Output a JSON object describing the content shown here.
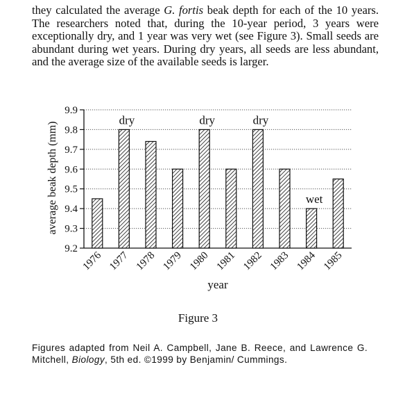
{
  "passage": {
    "line1_a": "they calculated the average ",
    "line1_species": "G. fortis",
    "line1_b": " beak depth for each of",
    "rest": "the 10 years. The researchers noted that, during the 10-year period, 3 years were exceptionally dry, and 1 year was very wet (see Figure 3). Small seeds are abundant during wet years. During dry years, all seeds are less abundant, and the average size of the available seeds is larger."
  },
  "figure": {
    "caption": "Figure 3"
  },
  "source": {
    "part1": "Figures adapted from Neil A. Campbell, Jane B. Reece, and Lawrence G. Mitchell, ",
    "book": "Biology",
    "part2": ", 5th ed. ©1999 by Benjamin/ Cummings."
  },
  "chart_data": {
    "type": "bar",
    "title": "",
    "xlabel": "year",
    "ylabel": "average beak depth (mm)",
    "categories": [
      "1976",
      "1977",
      "1978",
      "1979",
      "1980",
      "1981",
      "1982",
      "1983",
      "1984",
      "1985"
    ],
    "values": [
      9.45,
      9.8,
      9.74,
      9.6,
      9.8,
      9.6,
      9.8,
      9.6,
      9.4,
      9.55
    ],
    "bar_labels": [
      "",
      "dry",
      "",
      "",
      "dry",
      "",
      "dry",
      "",
      "wet",
      ""
    ],
    "yticks": [
      "9.2",
      "9.3",
      "9.4",
      "9.5",
      "9.6",
      "9.7",
      "9.8",
      "9.9"
    ],
    "ylim": [
      9.2,
      9.9
    ],
    "grid": "horizontal dotted",
    "bar_fill": "diagonal hatch",
    "colors": {
      "ink": "#111111",
      "grid": "#555555"
    }
  }
}
